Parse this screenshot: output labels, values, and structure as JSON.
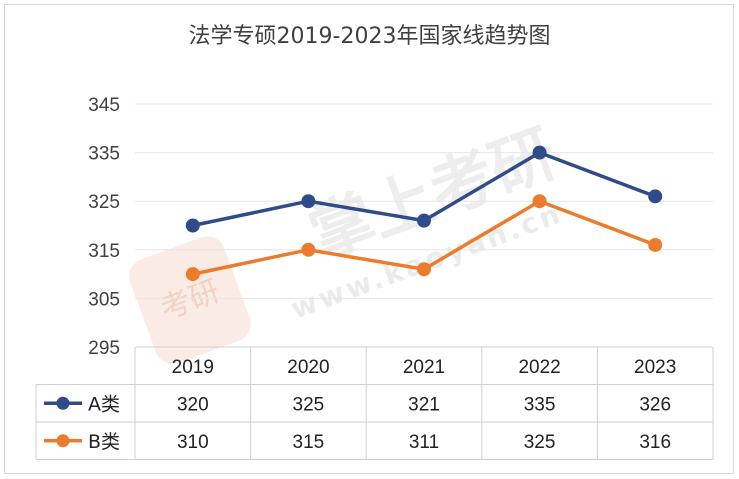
{
  "title": "法学专硕2019-2023年国家线趋势图",
  "watermark": {
    "brand": "掌上考研",
    "url": "www.kaoyan.cn",
    "logo_text": "考研"
  },
  "colors": {
    "series_a": "#2f4b8a",
    "series_b": "#ec7b2c"
  },
  "chart_data": {
    "type": "line",
    "title": "法学专硕2019-2023年国家线趋势图",
    "categories": [
      "2019",
      "2020",
      "2021",
      "2022",
      "2023"
    ],
    "ylim": [
      295,
      345
    ],
    "yticks": [
      295,
      305,
      315,
      325,
      335,
      345
    ],
    "grid": true,
    "legend": "table-left",
    "series": [
      {
        "name": "A类",
        "values": [
          320,
          325,
          321,
          335,
          326
        ]
      },
      {
        "name": "B类",
        "values": [
          310,
          315,
          311,
          325,
          316
        ]
      }
    ]
  }
}
